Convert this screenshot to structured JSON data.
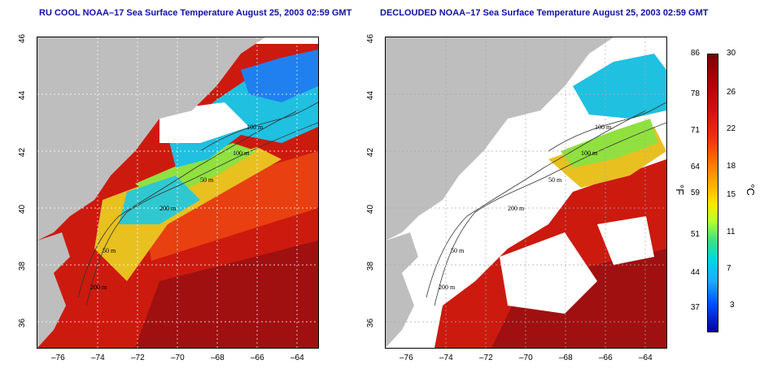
{
  "left_panel": {
    "title": "RU COOL NOAA–17 Sea Surface Temperature August 25, 2003 02:59 GMT"
  },
  "right_panel": {
    "title": "DECLOUDED NOAA–17 Sea Surface Temperature August 25, 2003 02:59 GMT"
  },
  "axes": {
    "x_ticks": [
      "–76",
      "–74",
      "–72",
      "–70",
      "–68",
      "–66",
      "–64"
    ],
    "y_ticks": [
      "46",
      "44",
      "42",
      "40",
      "38",
      "36"
    ]
  },
  "contours": {
    "labels": [
      "100 m",
      "100 m",
      "50 m",
      "200 m",
      "50 m",
      "200 m"
    ]
  },
  "colorbar": {
    "fahrenheit_ticks": [
      "86",
      "78",
      "71",
      "64",
      "59",
      "51",
      "44",
      "37"
    ],
    "celsius_ticks": [
      "30",
      "26",
      "22",
      "18",
      "15",
      "11",
      "7",
      "3"
    ],
    "fahrenheit_unit": "°F",
    "celsius_unit": "°C"
  },
  "colors": {
    "land": "#bebebe",
    "title": "#1010a0",
    "warm": "#cc1a0f",
    "cool": "#20c0e0"
  }
}
